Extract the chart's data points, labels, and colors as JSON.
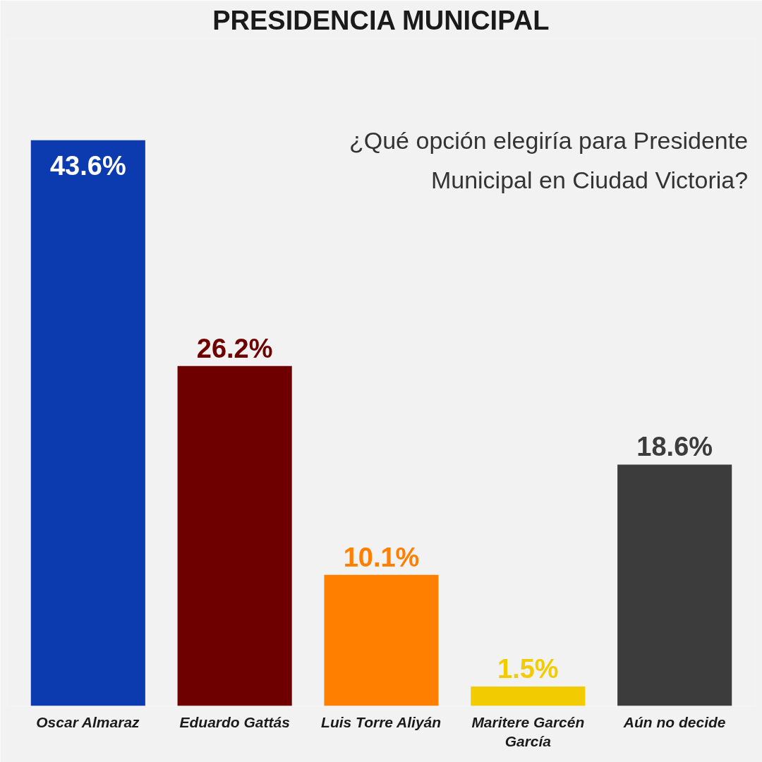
{
  "chart_data": {
    "type": "bar",
    "title": "PRESIDENCIA MUNICIPAL",
    "subtitle": "¿Qué opción elegiría para Presidente Municipal en Ciudad Victoria?",
    "categories": [
      "Oscar Almaraz",
      "Eduardo Gattás",
      "Luis Torre Aliyán",
      "Maritere Garcén García",
      "Aún no decide"
    ],
    "values": [
      43.6,
      26.2,
      10.1,
      1.5,
      18.6
    ],
    "value_labels": [
      "43.6%",
      "26.2%",
      "10.1%",
      "1.5%",
      "18.6%"
    ],
    "colors": [
      "#0c3bb0",
      "#6e0000",
      "#ff7f00",
      "#f2cc00",
      "#3c3c3c"
    ],
    "grid": false
  }
}
